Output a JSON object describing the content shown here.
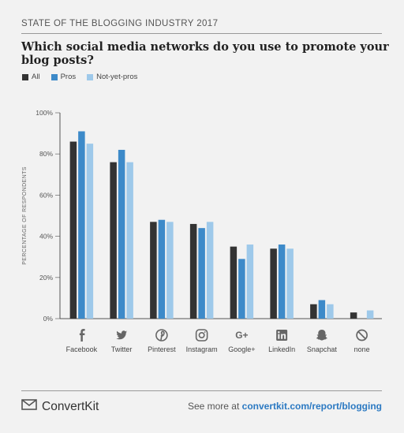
{
  "header": {
    "label": "STATE OF THE BLOGGING INDUSTRY 2017"
  },
  "title": "Which social media networks do you use to promote your blog posts?",
  "colors": {
    "all": "#333333",
    "pros": "#3d8ac9",
    "not_yet_pros": "#9ec9ea"
  },
  "chart_data": {
    "type": "bar",
    "title": "",
    "ylabel": "PERCENTAGE OF RESPONDENTS",
    "xlabel": "",
    "ylim": [
      0,
      100
    ],
    "y_ticks": [
      "0%",
      "20%",
      "40%",
      "60%",
      "80%",
      "100%"
    ],
    "y_tick_values": [
      0,
      20,
      40,
      60,
      80,
      100
    ],
    "categories": [
      "Facebook",
      "Twitter",
      "Pinterest",
      "Instagram",
      "Google+",
      "LinkedIn",
      "Snapchat",
      "none"
    ],
    "category_icons": [
      "facebook-icon",
      "twitter-icon",
      "pinterest-icon",
      "instagram-icon",
      "google-plus-icon",
      "linkedin-icon",
      "snapchat-icon",
      "none-icon"
    ],
    "legend_placement": "top-left",
    "grid": false,
    "series": [
      {
        "name": "All",
        "values": [
          86,
          76,
          47,
          46,
          35,
          34,
          7,
          3
        ]
      },
      {
        "name": "Pros",
        "values": [
          91,
          82,
          48,
          44,
          29,
          36,
          9,
          0
        ]
      },
      {
        "name": "Not-yet-pros",
        "values": [
          85,
          76,
          47,
          47,
          36,
          34,
          7,
          4
        ]
      }
    ]
  },
  "footer": {
    "brand": "ConvertKit",
    "cta_prefix": "See more at ",
    "cta_link": "convertkit.com/report/blogging"
  }
}
